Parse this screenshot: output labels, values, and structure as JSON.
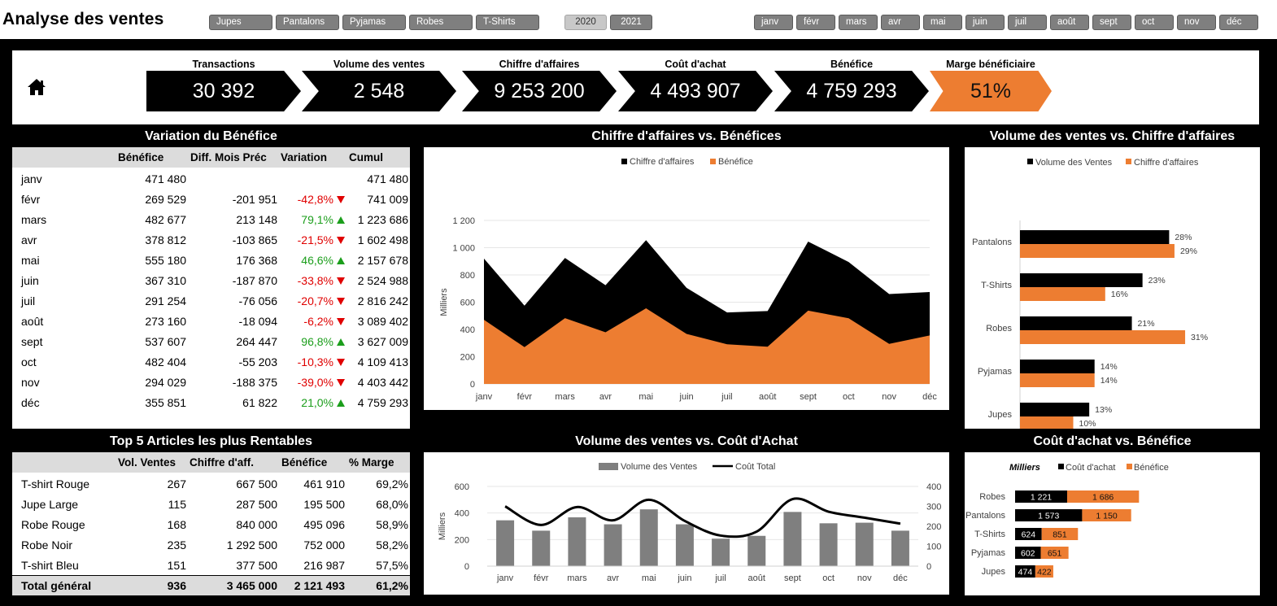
{
  "title": "Analyse des ventes",
  "colors": {
    "accent": "#ed7d31",
    "dark": "#000000",
    "gray": "#7f7f7f",
    "up": "#1b9e1b",
    "down": "#e00000"
  },
  "slicers": {
    "categories": [
      "Jupes",
      "Pantalons",
      "Pyjamas",
      "Robes",
      "T-Shirts"
    ],
    "years": [
      "2020",
      "2021"
    ],
    "months": [
      "janv",
      "févr",
      "mars",
      "avr",
      "mai",
      "juin",
      "juil",
      "août",
      "sept",
      "oct",
      "nov",
      "déc"
    ]
  },
  "kpis": [
    {
      "label": "Transactions",
      "value": "30 392"
    },
    {
      "label": "Volume des ventes",
      "value": "2 548"
    },
    {
      "label": "Chiffre d'affaires",
      "value": "9 253 200"
    },
    {
      "label": "Coût d'achat",
      "value": "4 493 907"
    },
    {
      "label": "Bénéfice",
      "value": "4 759 293"
    },
    {
      "label": "Marge bénéficiaire",
      "value": "51%"
    }
  ],
  "profit_table": {
    "title": "Variation du Bénéfice",
    "headers": [
      "Bénéfice",
      "Diff. Mois Préc",
      "Variation",
      "Cumul"
    ],
    "rows": [
      {
        "month": "janv",
        "profit": "471 480",
        "diff": "",
        "variation": "",
        "dir": "",
        "cumul": "471 480"
      },
      {
        "month": "févr",
        "profit": "269 529",
        "diff": "-201 951",
        "variation": "-42,8%",
        "dir": "down",
        "cumul": "741 009"
      },
      {
        "month": "mars",
        "profit": "482 677",
        "diff": "213 148",
        "variation": "79,1%",
        "dir": "up",
        "cumul": "1 223 686"
      },
      {
        "month": "avr",
        "profit": "378 812",
        "diff": "-103 865",
        "variation": "-21,5%",
        "dir": "down",
        "cumul": "1 602 498"
      },
      {
        "month": "mai",
        "profit": "555 180",
        "diff": "176 368",
        "variation": "46,6%",
        "dir": "up",
        "cumul": "2 157 678"
      },
      {
        "month": "juin",
        "profit": "367 310",
        "diff": "-187 870",
        "variation": "-33,8%",
        "dir": "down",
        "cumul": "2 524 988"
      },
      {
        "month": "juil",
        "profit": "291 254",
        "diff": "-76 056",
        "variation": "-20,7%",
        "dir": "down",
        "cumul": "2 816 242"
      },
      {
        "month": "août",
        "profit": "273 160",
        "diff": "-18 094",
        "variation": "-6,2%",
        "dir": "down",
        "cumul": "3 089 402"
      },
      {
        "month": "sept",
        "profit": "537 607",
        "diff": "264 447",
        "variation": "96,8%",
        "dir": "up",
        "cumul": "3 627 009"
      },
      {
        "month": "oct",
        "profit": "482 404",
        "diff": "-55 203",
        "variation": "-10,3%",
        "dir": "down",
        "cumul": "4 109 413"
      },
      {
        "month": "nov",
        "profit": "294 029",
        "diff": "-188 375",
        "variation": "-39,0%",
        "dir": "down",
        "cumul": "4 403 442"
      },
      {
        "month": "déc",
        "profit": "355 851",
        "diff": "61 822",
        "variation": "21,0%",
        "dir": "up",
        "cumul": "4 759 293"
      }
    ]
  },
  "top5_table": {
    "title": "Top 5 Articles les plus Rentables",
    "headers": [
      "Vol. Ventes",
      "Chiffre d'aff.",
      "Bénéfice",
      "% Marge"
    ],
    "rows": [
      {
        "item": "T-shirt Rouge",
        "vol": "267",
        "ca": "667 500",
        "profit": "461 910",
        "margin": "69,2%"
      },
      {
        "item": "Jupe Large",
        "vol": "115",
        "ca": "287 500",
        "profit": "195 500",
        "margin": "68,0%"
      },
      {
        "item": "Robe Rouge",
        "vol": "168",
        "ca": "840 000",
        "profit": "495 096",
        "margin": "58,9%"
      },
      {
        "item": "Robe Noir",
        "vol": "235",
        "ca": "1 292 500",
        "profit": "752 000",
        "margin": "58,2%"
      },
      {
        "item": "T-shirt Bleu",
        "vol": "151",
        "ca": "377 500",
        "profit": "216 987",
        "margin": "57,5%"
      }
    ],
    "total": {
      "item": "Total général",
      "vol": "936",
      "ca": "3 465 000",
      "profit": "2 121 493",
      "margin": "61,2%"
    }
  },
  "chart_data": [
    {
      "id": "ca-vs-benefice",
      "type": "area",
      "title": "Chiffre d'affaires vs. Bénéfices",
      "ylabel": "Milliers",
      "ylim": [
        0,
        1200
      ],
      "yticks": [
        "0",
        "200",
        "400",
        "600",
        "800",
        "1 000",
        "1 200"
      ],
      "categories": [
        "janv",
        "févr",
        "mars",
        "avr",
        "mai",
        "juin",
        "juil",
        "août",
        "sept",
        "oct",
        "nov",
        "déc"
      ],
      "series": [
        {
          "name": "Chiffre d'affaires",
          "color": "#000000",
          "values": [
            920,
            575,
            925,
            725,
            1055,
            705,
            525,
            535,
            1045,
            895,
            660,
            675
          ]
        },
        {
          "name": "Bénéfice",
          "color": "#ed7d31",
          "values": [
            471,
            270,
            483,
            379,
            555,
            367,
            291,
            273,
            538,
            482,
            294,
            356
          ]
        }
      ]
    },
    {
      "id": "volume-vs-ca",
      "type": "bar",
      "title": "Volume des ventes vs. Chiffre d'affaires",
      "categories": [
        "Pantalons",
        "T-Shirts",
        "Robes",
        "Pyjamas",
        "Jupes"
      ],
      "series": [
        {
          "name": "Volume des Ventes",
          "color": "#000000",
          "values": [
            28,
            23,
            21,
            14,
            13
          ],
          "labels": [
            "28%",
            "23%",
            "21%",
            "14%",
            "13%"
          ]
        },
        {
          "name": "Chiffre d'affaires",
          "color": "#ed7d31",
          "values": [
            29,
            16,
            31,
            14,
            10
          ],
          "labels": [
            "29%",
            "16%",
            "31%",
            "14%",
            "10%"
          ]
        }
      ]
    },
    {
      "id": "volume-vs-cout",
      "type": "bar",
      "title": "Volume des ventes vs. Coût d'Achat",
      "ylabel": "Milliers",
      "ylim": [
        0,
        600
      ],
      "yticks": [
        "0",
        "200",
        "400",
        "600"
      ],
      "y2lim": [
        0,
        400
      ],
      "y2ticks": [
        "0",
        "100",
        "200",
        "300",
        "400"
      ],
      "categories": [
        "janv",
        "févr",
        "mars",
        "avr",
        "mai",
        "juin",
        "juil",
        "août",
        "sept",
        "oct",
        "nov",
        "déc"
      ],
      "series": [
        {
          "name": "Volume des Ventes",
          "color": "#7f7f7f",
          "axis": "right",
          "values": [
            230,
            178,
            245,
            210,
            285,
            210,
            138,
            152,
            272,
            215,
            218,
            178
          ]
        },
        {
          "name": "Coût Total",
          "color": "#000000",
          "axis": "left",
          "type": "line",
          "values": [
            450,
            310,
            445,
            345,
            500,
            340,
            230,
            260,
            505,
            410,
            365,
            320
          ]
        }
      ]
    },
    {
      "id": "cout-vs-benefice",
      "type": "stacked-bar",
      "title": "Coût d'achat vs. Bénéfice",
      "unit_label": "Milliers",
      "categories": [
        "Robes",
        "Pantalons",
        "T-Shirts",
        "Pyjamas",
        "Jupes"
      ],
      "series": [
        {
          "name": "Coût d'achat",
          "color": "#000000",
          "values": [
            1221,
            1573,
            624,
            602,
            474
          ],
          "labels": [
            "1 221",
            "1 573",
            "624",
            "602",
            "474"
          ]
        },
        {
          "name": "Bénéfice",
          "color": "#ed7d31",
          "values": [
            1686,
            1150,
            851,
            651,
            422
          ],
          "labels": [
            "1 686",
            "1 150",
            "851",
            "651",
            "422"
          ]
        }
      ]
    }
  ]
}
